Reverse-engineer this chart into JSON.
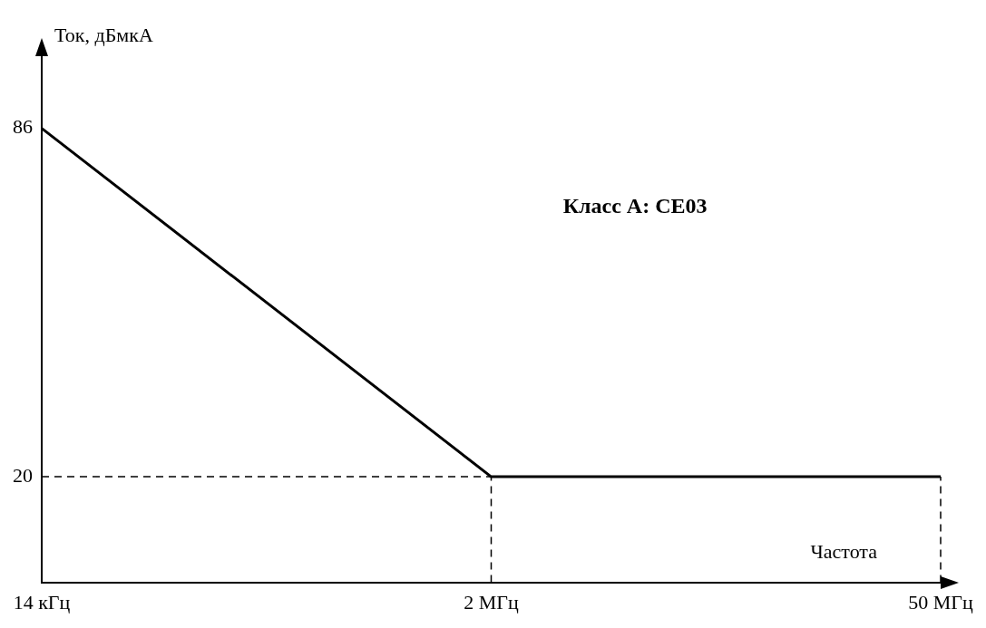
{
  "chart_data": {
    "type": "line",
    "ylabel": "Ток, дБмкА",
    "xlabel": "Частота",
    "annotations": [
      "Класс А: СЕ03"
    ],
    "categories": [
      "14 кГц",
      "2 МГц",
      "50 МГц"
    ],
    "series": [
      {
        "color": "#000000",
        "values": [
          86,
          20,
          20
        ]
      }
    ],
    "ylim": [
      0,
      100
    ],
    "yticks": [
      20,
      86
    ],
    "grid": false,
    "legend": false,
    "marker": "none",
    "line_style": "solid",
    "ref_lines": [
      {
        "axis": "y",
        "value": 20,
        "line_style": "dashed",
        "color": "#000000"
      },
      {
        "axis": "x",
        "value": "2 МГц",
        "line_style": "dashed",
        "color": "#000000"
      },
      {
        "axis": "x",
        "value": "50 МГц",
        "line_style": "dashed",
        "color": "#000000"
      }
    ]
  }
}
